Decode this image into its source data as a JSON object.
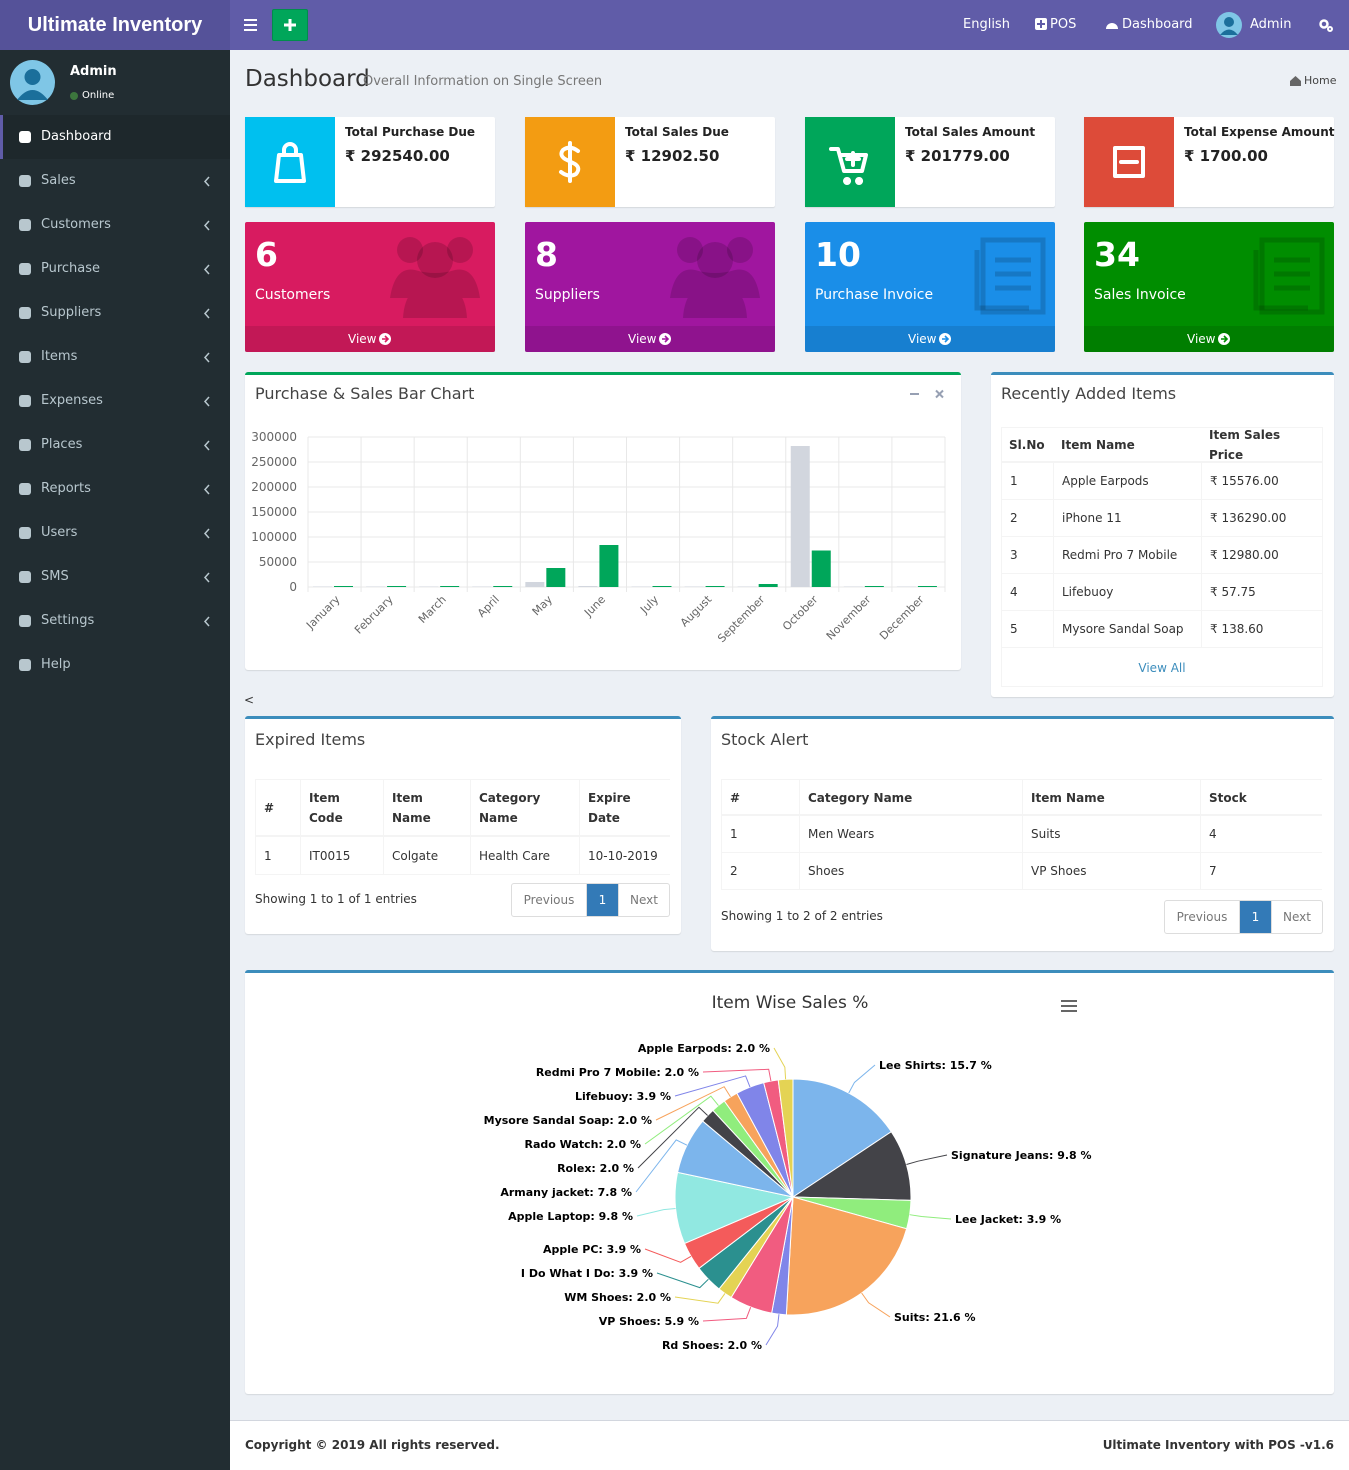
{
  "header": {
    "brand": "Ultimate Inventory",
    "nav": [
      "English",
      "POS",
      "Dashboard",
      "Admin"
    ]
  },
  "sidebar": {
    "user": "Admin",
    "status": "Online",
    "menu": [
      "Dashboard",
      "Sales",
      "Customers",
      "Purchase",
      "Suppliers",
      "Items",
      "Expenses",
      "Places",
      "Reports",
      "Users",
      "SMS",
      "Settings",
      "Help"
    ]
  },
  "page": {
    "title": "Dashboard",
    "subtitle": "Overall Information on Single Screen",
    "breadcrumb": "Home"
  },
  "info_boxes": [
    {
      "label": "Total Purchase Due",
      "value": "₹ 292540.00"
    },
    {
      "label": "Total Sales Due",
      "value": "₹ 12902.50"
    },
    {
      "label": "Total Sales Amount",
      "value": "₹ 201779.00"
    },
    {
      "label": "Total Expense Amount",
      "value": "₹ 1700.00"
    }
  ],
  "small_boxes": [
    {
      "count": 6,
      "label": "Customers",
      "link": "View"
    },
    {
      "count": 8,
      "label": "Suppliers",
      "link": "View"
    },
    {
      "count": 10,
      "label": "Purchase Invoice",
      "link": "View"
    },
    {
      "count": 34,
      "label": "Sales Invoice",
      "link": "View"
    }
  ],
  "chart_data": [
    {
      "type": "bar",
      "title": "Purchase & Sales Bar Chart",
      "categories": [
        "January",
        "February",
        "March",
        "April",
        "May",
        "June",
        "July",
        "August",
        "September",
        "October",
        "November",
        "December"
      ],
      "series": [
        {
          "color": "#d2d6de",
          "values": [
            1000,
            1000,
            1000,
            1000,
            10000,
            2000,
            1000,
            1000,
            1000,
            282000,
            1000,
            1000
          ]
        },
        {
          "color": "#00a65a",
          "values": [
            2000,
            2000,
            2000,
            2000,
            38000,
            84000,
            2000,
            2000,
            6000,
            73000,
            2000,
            2000
          ]
        }
      ],
      "ylim": [
        0,
        300000
      ],
      "yticks": [
        0,
        50000,
        100000,
        150000,
        200000,
        250000,
        300000
      ],
      "grid": true
    },
    {
      "type": "pie",
      "title": "Item Wise Sales %",
      "values": [
        15.7,
        9.8,
        3.9,
        21.6,
        2.0,
        5.9,
        2.0,
        3.9,
        3.9,
        9.8,
        7.8,
        2.0,
        2.0,
        2.0,
        3.9,
        2.0,
        2.0
      ],
      "value_labels": [
        "Lee Shirts: 15.7 %",
        "Signature Jeans: 9.8 %",
        "Lee Jacket: 3.9 %",
        "Suits: 21.6 %",
        "Rd Shoes: 2.0 %",
        "VP Shoes: 5.9 %",
        "WM Shoes: 2.0 %",
        "I Do What I Do: 3.9 %",
        "Apple PC: 3.9 %",
        "Apple Laptop: 9.8 %",
        "Armany jacket: 7.8 %",
        "Rolex: 2.0 %",
        "Rado Watch: 2.0 %",
        "Mysore Sandal Soap: 2.0 %",
        "Lifebuoy: 3.9 %",
        "Redmi Pro 7 Mobile: 2.0 %",
        "Apple Earpods: 2.0 %"
      ],
      "colors": [
        "#7cb5ec",
        "#434348",
        "#90ed7d",
        "#f7a35c",
        "#8085e9",
        "#f15c80",
        "#e4d354",
        "#2b908f",
        "#f45b5b",
        "#91e8e1",
        "#7cb5ec",
        "#434348",
        "#90ed7d",
        "#f7a35c",
        "#8085e9",
        "#f15c80",
        "#e4d354"
      ]
    }
  ],
  "recent_items": {
    "title": "Recently Added Items",
    "headers": [
      "Sl.No",
      "Item Name",
      "Item Sales Price"
    ],
    "rows": [
      [
        "1",
        "Apple Earpods",
        "₹ 15576.00"
      ],
      [
        "2",
        "iPhone 11",
        "₹ 136290.00"
      ],
      [
        "3",
        "Redmi Pro 7 Mobile",
        "₹ 12980.00"
      ],
      [
        "4",
        "Lifebuoy",
        "₹ 57.75"
      ],
      [
        "5",
        "Mysore Sandal Soap",
        "₹ 138.60"
      ]
    ],
    "link": "View All"
  },
  "stray": "<",
  "expired_items": {
    "title": "Expired Items",
    "headers": [
      "#",
      "Item Code",
      "Item Name",
      "Category Name",
      "Expire Date"
    ],
    "rows": [
      [
        "1",
        "IT0015",
        "Colgate",
        "Health Care",
        "10-10-2019"
      ]
    ],
    "info": "Showing 1 to 1 of 1 entries",
    "pagination": [
      "Previous",
      "1",
      "Next"
    ]
  },
  "stock_alert": {
    "title": "Stock Alert",
    "headers": [
      "#",
      "Category Name",
      "Item Name",
      "Stock"
    ],
    "rows": [
      [
        "1",
        "Men Wears",
        "Suits",
        "4"
      ],
      [
        "2",
        "Shoes",
        "VP Shoes",
        "7"
      ]
    ],
    "info": "Showing 1 to 2 of 2 entries",
    "pagination": [
      "Previous",
      "1",
      "Next"
    ]
  },
  "footer": {
    "copyright": "Copyright © 2019 All rights reserved.",
    "version": "Ultimate Inventory with POS -v1.6"
  }
}
